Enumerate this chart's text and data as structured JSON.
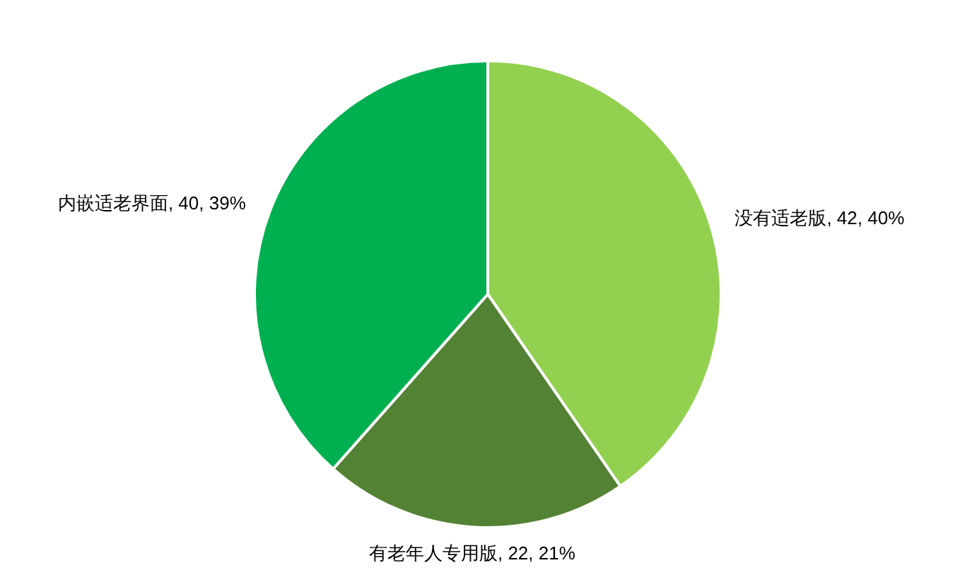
{
  "chart_data": {
    "type": "pie",
    "categories": [
      "没有适老版",
      "有老年人专用版",
      "内嵌适老界面"
    ],
    "values": [
      42,
      22,
      40
    ],
    "value_labels": [
      "42, 40%",
      "22, 21%",
      "40, 39%"
    ],
    "colors": [
      "#92d050",
      "#548235",
      "#00b050"
    ]
  }
}
